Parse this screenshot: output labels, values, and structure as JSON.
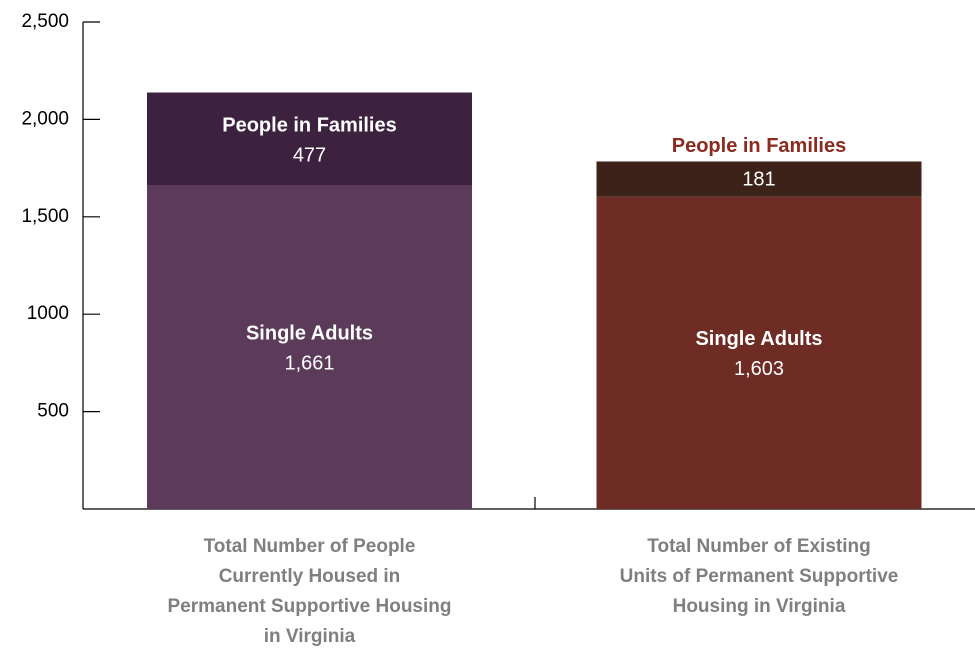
{
  "chart_data": {
    "type": "stacked_bar",
    "categories": [
      "Total Number of People\nCurrently Housed in\nPermanent Supportive Housing\nin Virginia",
      "Total Number of Existing\nUnits of Permanent Supportive\nHousing in Virginia"
    ],
    "series": [
      {
        "name": "Single Adults",
        "colors": [
          "#5c3a59",
          "#6e2c24"
        ],
        "values": [
          1661,
          1603
        ],
        "value_labels": [
          "1,661",
          "1,603"
        ]
      },
      {
        "name": "People in Families",
        "colors": [
          "#3d2240",
          "#3d2219"
        ],
        "values": [
          477,
          181
        ]
      }
    ],
    "ylim": [
      0,
      2500
    ],
    "yticks": [
      500,
      1000,
      {
        "value": 1500,
        "label": "1,500"
      },
      {
        "value": 2000,
        "label": "2,000"
      },
      {
        "value": 2500,
        "label": "2,500"
      }
    ]
  }
}
